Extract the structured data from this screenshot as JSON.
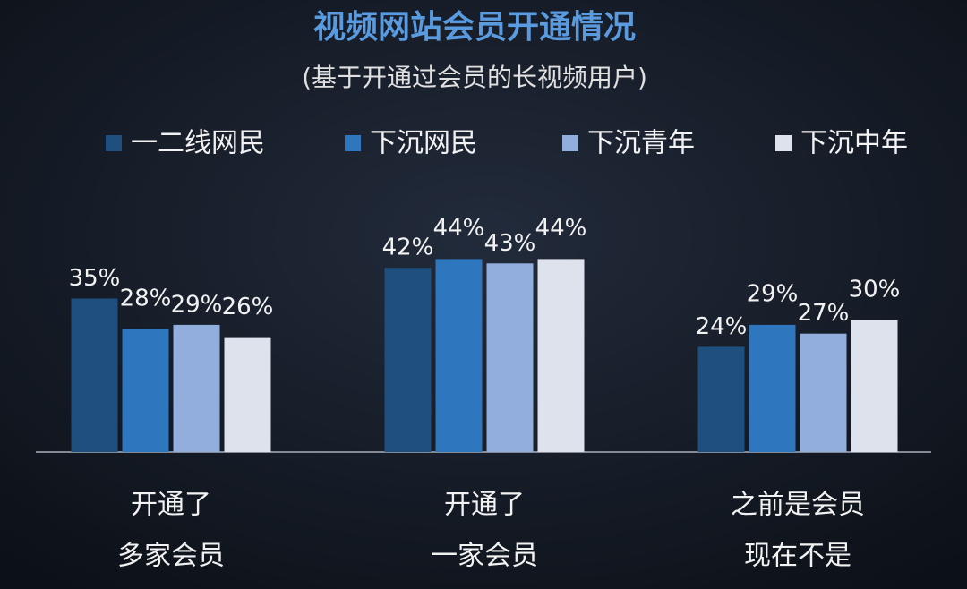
{
  "chart_data": {
    "type": "bar",
    "title": "视频网站会员开通情况",
    "subtitle": "(基于开通过会员的长视频用户)",
    "categories": [
      [
        "开通了",
        "多家会员"
      ],
      [
        "开通了",
        "一家会员"
      ],
      [
        "之前是会员",
        "现在不是"
      ]
    ],
    "series": [
      {
        "name": "一二线网民",
        "color": "#1f4f7e",
        "values": [
          35,
          42,
          24
        ],
        "value_labels": [
          "35%",
          "42%",
          "24%"
        ]
      },
      {
        "name": "下沉网民",
        "color": "#2e76bd",
        "values": [
          28,
          44,
          29
        ],
        "value_labels": [
          "28%",
          "44%",
          "29%"
        ]
      },
      {
        "name": "下沉青年",
        "color": "#92aedd",
        "values": [
          29,
          43,
          27
        ],
        "value_labels": [
          "29%",
          "43%",
          "27%"
        ]
      },
      {
        "name": "下沉中年",
        "color": "#dde2ec",
        "values": [
          26,
          44,
          30
        ],
        "value_labels": [
          "26%",
          "44%",
          "30%"
        ]
      }
    ]
  }
}
